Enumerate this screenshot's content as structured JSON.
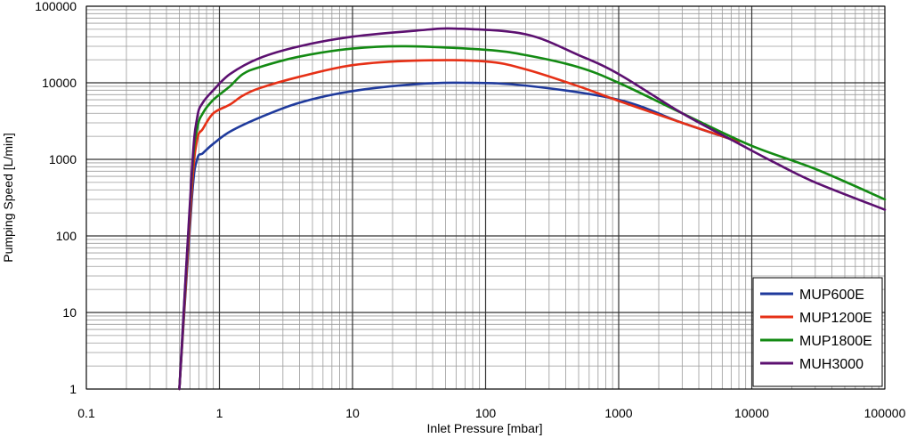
{
  "chart_data": {
    "type": "line",
    "xlabel": "Inlet Pressure [mbar]",
    "ylabel": "Pumping Speed [L/min]",
    "x_scale": "log",
    "y_scale": "log",
    "xlim": [
      0.1,
      100000
    ],
    "ylim": [
      1,
      100000
    ],
    "x_ticks": [
      "0.1",
      "1",
      "10",
      "100",
      "1000",
      "10000",
      "100000"
    ],
    "y_ticks": [
      "1",
      "10",
      "100",
      "1000",
      "10000",
      "100000"
    ],
    "grid": true,
    "legend_position": "bottom-right",
    "series": [
      {
        "name": "MUP600E",
        "color": "#1f3a9c",
        "x": [
          0.5,
          0.62,
          0.68,
          0.75,
          0.9,
          1.2,
          2,
          4,
          10,
          30,
          70,
          200,
          1000,
          3000,
          8000
        ],
        "y": [
          1,
          300,
          1000,
          1200,
          1600,
          2300,
          3500,
          5500,
          7800,
          9600,
          10000,
          9200,
          6000,
          3000,
          1700
        ]
      },
      {
        "name": "MUP1200E",
        "color": "#e63016",
        "x": [
          0.5,
          0.62,
          0.68,
          0.75,
          0.9,
          1.2,
          1.5,
          2,
          4,
          10,
          30,
          100,
          200,
          500,
          1000,
          3000,
          8000
        ],
        "y": [
          1,
          400,
          1800,
          2500,
          4000,
          5200,
          6800,
          8500,
          12000,
          17000,
          19500,
          19000,
          15000,
          9000,
          5800,
          3000,
          1700
        ]
      },
      {
        "name": "MUP1800E",
        "color": "#138a13",
        "x": [
          0.5,
          0.62,
          0.68,
          0.75,
          0.9,
          1.2,
          1.5,
          2,
          4,
          10,
          25,
          100,
          200,
          500,
          1000,
          3000,
          10000,
          30000,
          100000
        ],
        "y": [
          1,
          600,
          2500,
          4000,
          6000,
          9000,
          13000,
          16000,
          22000,
          28000,
          30000,
          27000,
          23000,
          16000,
          10000,
          4000,
          1500,
          750,
          300
        ]
      },
      {
        "name": "MUH3000",
        "color": "#5c1070",
        "x": [
          0.5,
          0.62,
          0.68,
          0.75,
          0.9,
          1.2,
          2,
          4,
          10,
          30,
          60,
          200,
          500,
          1000,
          3000,
          8000,
          15000,
          30000,
          100000
        ],
        "y": [
          1,
          700,
          3500,
          5500,
          8000,
          13000,
          21000,
          30000,
          40000,
          48000,
          51000,
          43000,
          23000,
          13000,
          4000,
          1600,
          900,
          500,
          220
        ]
      }
    ]
  }
}
